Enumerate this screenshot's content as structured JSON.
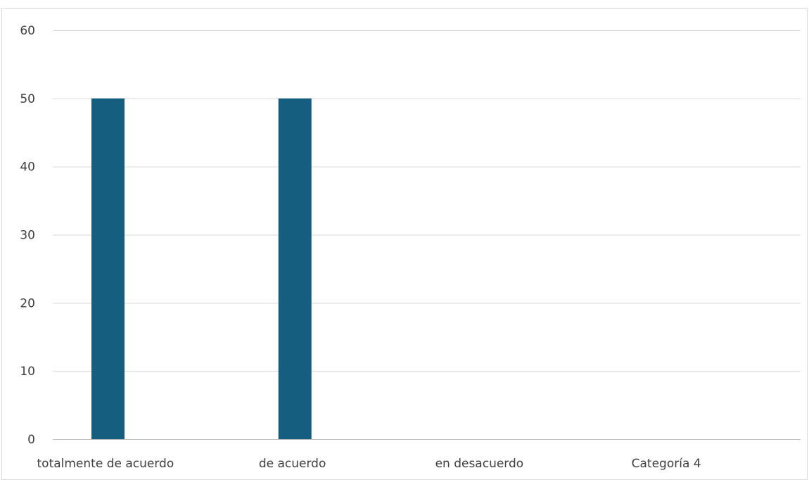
{
  "chart_data": {
    "type": "bar",
    "title": "",
    "xlabel": "",
    "ylabel": "",
    "categories": [
      "totalmente de acuerdo",
      "de acuerdo",
      "en desacuerdo",
      "Categoría 4"
    ],
    "values": [
      50,
      50,
      0,
      0
    ],
    "ylim": [
      0,
      60
    ],
    "yticks": [
      0,
      10,
      20,
      30,
      40,
      50,
      60
    ],
    "grid": true,
    "legend": "none",
    "bar_color": "#155e80"
  }
}
